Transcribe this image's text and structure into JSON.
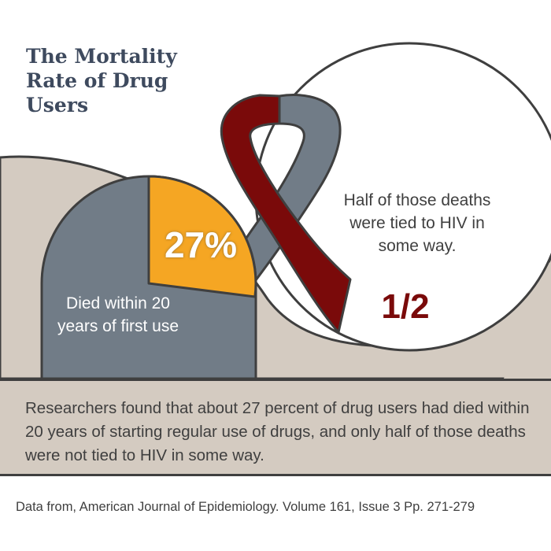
{
  "title": "The Mortality Rate of Drug Users",
  "tombstone": {
    "percent_label": "27%",
    "percent_value": 27,
    "caption": "Died within 20 years of first use"
  },
  "hiv": {
    "note": "Half of those deaths were tied to HIV in some way.",
    "fraction": "1/2"
  },
  "summary": "Researchers found that about 27 percent of drug users had died within 20 years of starting regular use of drugs, and only half of those deaths were not tied to HIV in some way.",
  "source": "Data from, American Journal of Epidemiology. Volume 161, Issue 3 Pp. 271-279",
  "colors": {
    "hill": "#d4cbc1",
    "tombstone": "#717c87",
    "slice": "#f5a623",
    "ribbon_red": "#7a0a0a",
    "ribbon_gray": "#717c87",
    "outline": "#3f3f3f",
    "title": "#3e4a5e"
  },
  "icons": [
    "awareness-ribbon-icon",
    "tombstone-icon"
  ]
}
